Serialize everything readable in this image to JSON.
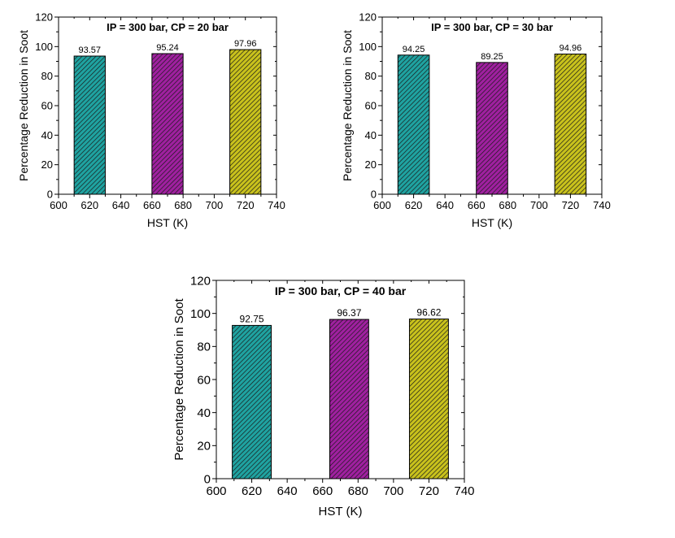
{
  "colors": {
    "series": [
      "#1fa3a1",
      "#a020a0",
      "#c9c21c"
    ],
    "hatch": "#1a1a1a",
    "axis": "#000000"
  },
  "chart_data": [
    {
      "type": "bar",
      "title": "IP = 300 bar, CP = 20 bar",
      "xlabel": "HST (K)",
      "ylabel": "Percentage Reduction in Soot",
      "x": [
        620,
        670,
        720
      ],
      "values": [
        93.57,
        95.24,
        97.96
      ],
      "value_labels": [
        "93.57",
        "95.24",
        "97.96"
      ],
      "bar_width": 20,
      "xlim": [
        600,
        740
      ],
      "ylim": [
        0,
        120
      ],
      "xticks": [
        600,
        620,
        640,
        660,
        680,
        700,
        720,
        740
      ],
      "yticks": [
        0,
        20,
        40,
        60,
        80,
        100,
        120
      ],
      "grid": false
    },
    {
      "type": "bar",
      "title": "IP = 300 bar, CP = 30 bar",
      "xlabel": "HST (K)",
      "ylabel": "Percentage Reduction in Soot",
      "x": [
        620,
        670,
        720
      ],
      "values": [
        94.25,
        89.25,
        94.96
      ],
      "value_labels": [
        "94.25",
        "89.25",
        "94.96"
      ],
      "bar_width": 20,
      "xlim": [
        600,
        740
      ],
      "ylim": [
        0,
        120
      ],
      "xticks": [
        600,
        620,
        640,
        660,
        680,
        700,
        720,
        740
      ],
      "yticks": [
        0,
        20,
        40,
        60,
        80,
        100,
        120
      ],
      "grid": false
    },
    {
      "type": "bar",
      "title": "IP = 300 bar, CP = 40 bar",
      "xlabel": "HST (K)",
      "ylabel": "Percentage Reduction in Soot",
      "x": [
        620,
        675,
        720
      ],
      "values": [
        92.75,
        96.37,
        96.62
      ],
      "value_labels": [
        "92.75",
        "96.37",
        "96.62"
      ],
      "bar_width": 22,
      "xlim": [
        600,
        740
      ],
      "ylim": [
        0,
        120
      ],
      "xticks": [
        600,
        620,
        640,
        660,
        680,
        700,
        720,
        740
      ],
      "yticks": [
        0,
        20,
        40,
        60,
        80,
        100,
        120
      ],
      "grid": false
    }
  ]
}
